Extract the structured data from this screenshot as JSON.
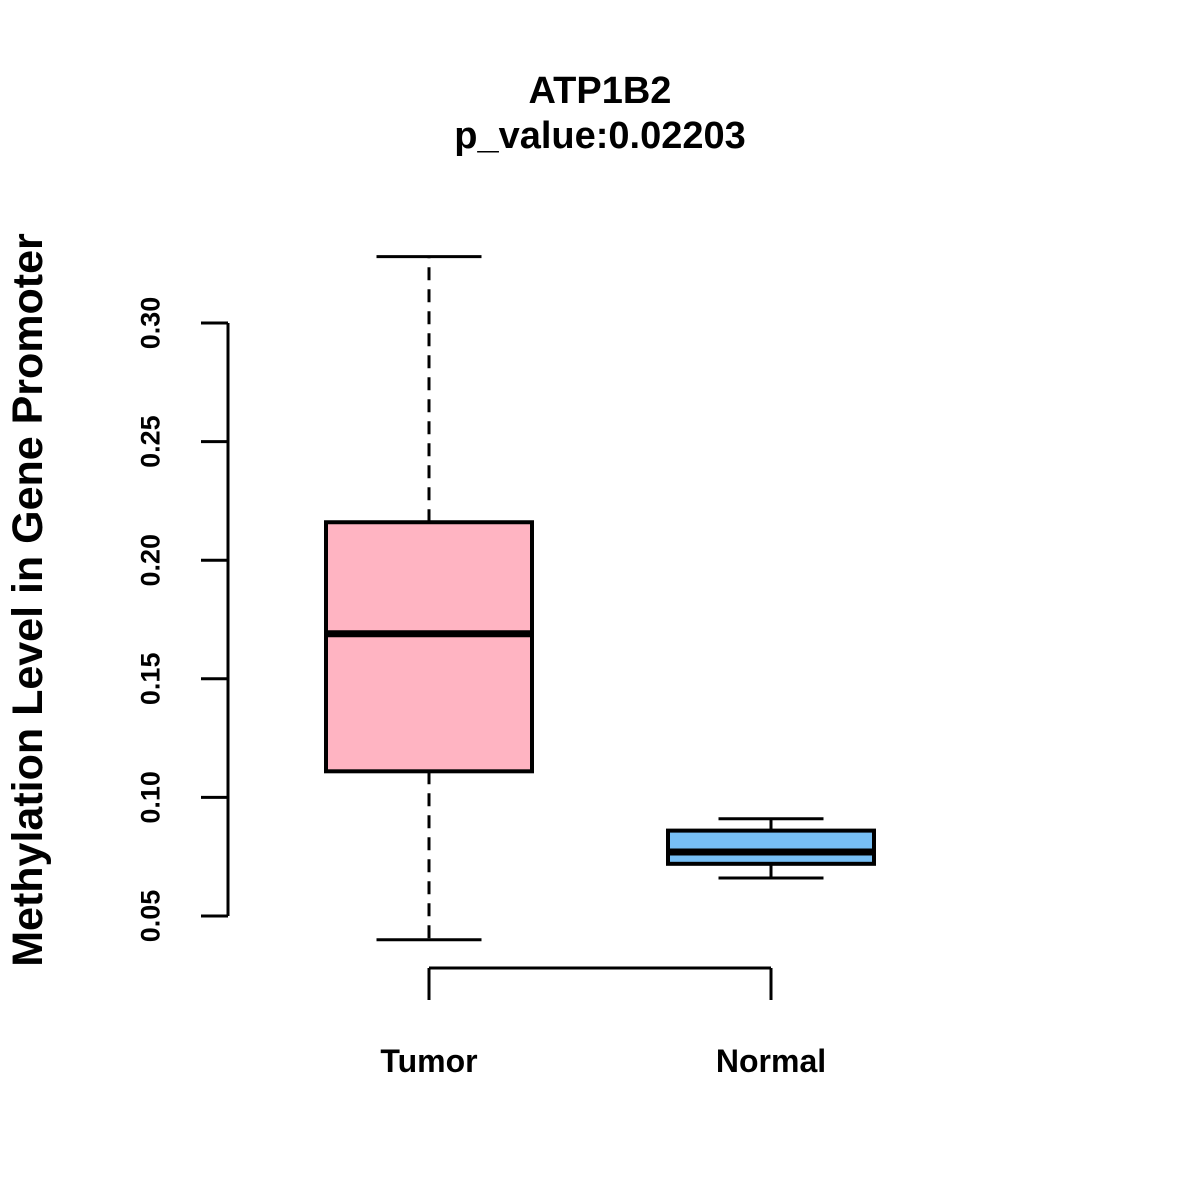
{
  "chart_data": {
    "type": "boxplot",
    "title": "ATP1B2",
    "subtitle": "p_value:0.02203",
    "ylabel": "Methylation Level in Gene Promoter",
    "xlabel": "",
    "categories": [
      "Tumor",
      "Normal"
    ],
    "series": [
      {
        "name": "Tumor",
        "fill_color": "#FFB4C2",
        "min": 0.04,
        "q1": 0.111,
        "median": 0.169,
        "q3": 0.216,
        "max": 0.328
      },
      {
        "name": "Normal",
        "fill_color": "#77BFF5",
        "min": 0.066,
        "q1": 0.072,
        "median": 0.077,
        "q3": 0.086,
        "max": 0.091
      }
    ],
    "yticks": [
      0.05,
      0.1,
      0.15,
      0.2,
      0.25,
      0.3
    ],
    "ylim": [
      0.038,
      0.33
    ],
    "grid": false,
    "legend": "none",
    "whisker_style": "dashed",
    "box_border_color": "#000000",
    "median_color": "#000000",
    "x_axis_bracket_connects_groups": true
  }
}
